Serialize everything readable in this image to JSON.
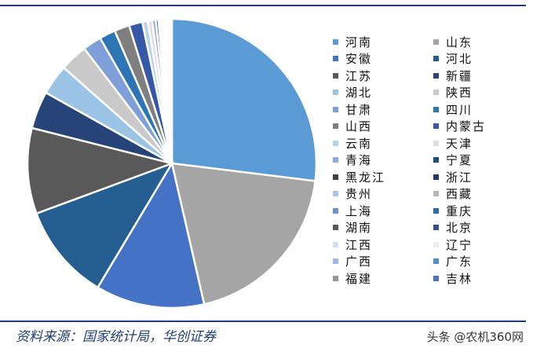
{
  "chart_data": {
    "type": "pie",
    "title": "",
    "legend_position": "right",
    "categories": [
      "河南",
      "山东",
      "安徽",
      "河北",
      "江苏",
      "新疆",
      "湖北",
      "陕西",
      "甘肃",
      "四川",
      "山西",
      "内蒙古",
      "云南",
      "天津",
      "青海",
      "宁夏",
      "黑龙江",
      "浙江",
      "贵州",
      "西藏",
      "上海",
      "重庆",
      "湖南",
      "北京",
      "江西",
      "辽宁",
      "广西",
      "广东",
      "福建",
      "吉林"
    ],
    "values": [
      27.0,
      19.5,
      12.2,
      10.8,
      9.6,
      4.2,
      3.4,
      3.1,
      2.1,
      1.8,
      1.7,
      1.5,
      0.6,
      0.5,
      0.4,
      0.3,
      0.2,
      0.2,
      0.2,
      0.2,
      0.1,
      0.1,
      0.1,
      0.1,
      0.05,
      0.05,
      0.05,
      0.05,
      0.05,
      0.05
    ],
    "colors": [
      "#5b9bd5",
      "#a5a5a5",
      "#4472c4",
      "#255e91",
      "#595959",
      "#264478",
      "#9bc3e6",
      "#c9c9c9",
      "#7f9fd8",
      "#2e75b6",
      "#7f7f7f",
      "#3559a8",
      "#b4d3ef",
      "#dedede",
      "#8faadc",
      "#1f4e79",
      "#404040",
      "#203864",
      "#a9c6e8",
      "#b7b7b7",
      "#6f8fd0",
      "#2e6aa5",
      "#595959",
      "#2f4f8f",
      "#cfe2f3",
      "#ececec",
      "#9db9e4",
      "#4f8fd0",
      "#969696",
      "#4a70c2"
    ]
  },
  "source": "资料来源：国家统计局，华创证券",
  "watermark": "头条 @农机360网"
}
